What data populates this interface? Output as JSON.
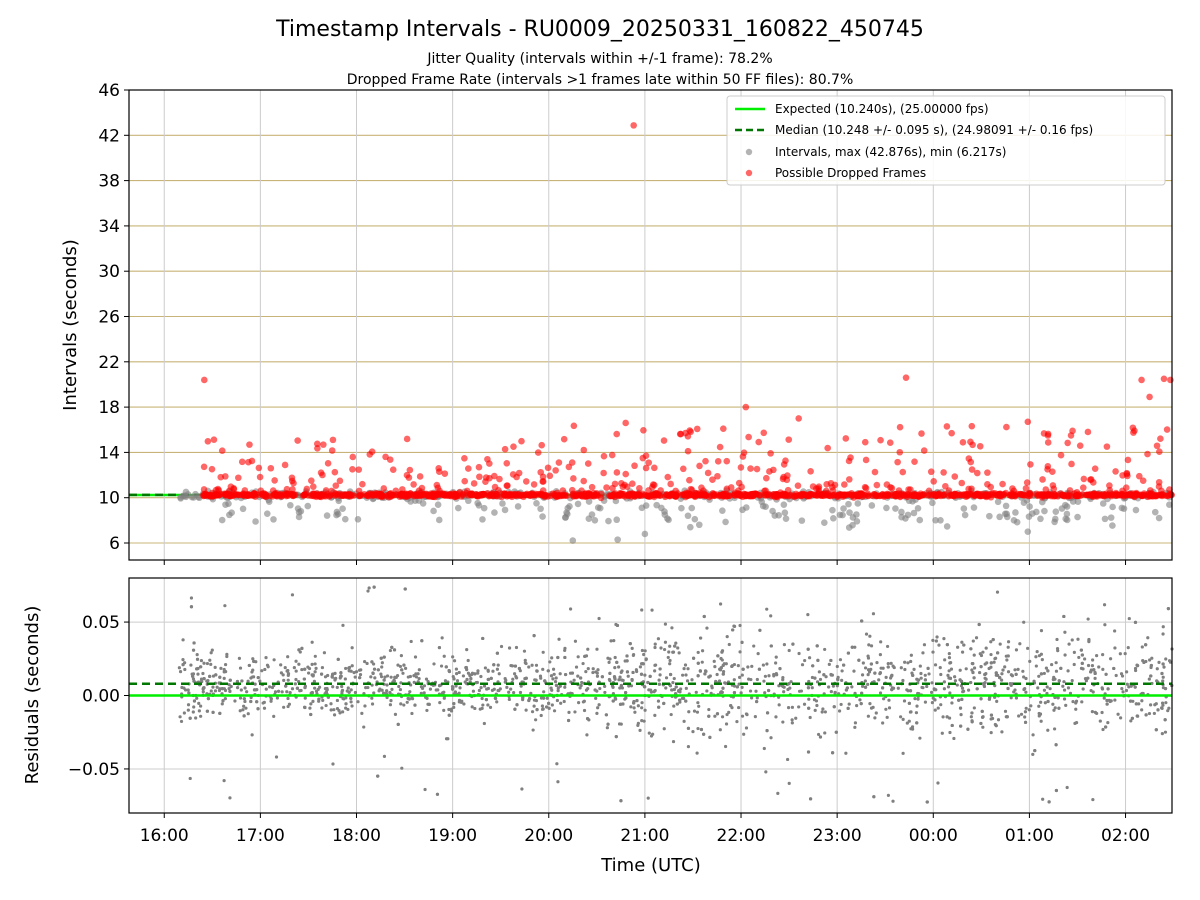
{
  "figure": {
    "title": "Timestamp Intervals - RU0009_20250331_160822_450745",
    "subtitle_1": "Jitter Quality (intervals within +/-1 frame): 78.2%",
    "subtitle_2": "Dropped Frame Rate (intervals >1 frames late within 50 FF files): 80.7%"
  },
  "chart_data": [
    {
      "type": "scatter",
      "ylabel": "Intervals (seconds)",
      "xlim": [
        "15:38",
        "02:29"
      ],
      "ylim": [
        4.5,
        46
      ],
      "y_ticks": [
        6,
        10,
        14,
        18,
        22,
        26,
        30,
        34,
        38,
        42,
        46
      ],
      "x_ticks": [
        "16:00",
        "17:00",
        "18:00",
        "19:00",
        "20:00",
        "21:00",
        "22:00",
        "23:00",
        "00:00",
        "01:00",
        "02:00"
      ],
      "grid": true,
      "legend_position": "top-right",
      "expected_line": {
        "y": 10.24,
        "color": "#00ee00"
      },
      "median_line": {
        "y": 10.248,
        "color": "#007700",
        "x_end": "20:12"
      },
      "legend": [
        "Expected (10.240s), (25.00000 fps)",
        "Median (10.248 +/- 0.095 s), (24.98091 +/- 0.16 fps)",
        "Intervals, max (42.876s), min (6.217s)",
        "Possible Dropped Frames"
      ],
      "series_colors": {
        "intervals": "#808080",
        "dropped": "#ff0000"
      },
      "notable_points": [
        {
          "x": "20:53",
          "y": 42.876,
          "series": "dropped"
        },
        {
          "x": "16:25",
          "y": 20.4,
          "series": "dropped"
        },
        {
          "x": "23:43",
          "y": 20.6,
          "series": "dropped"
        },
        {
          "x": "22:03",
          "y": 18.0,
          "series": "dropped"
        },
        {
          "x": "02:10",
          "y": 20.4,
          "series": "dropped"
        },
        {
          "x": "02:24",
          "y": 20.5,
          "series": "dropped"
        },
        {
          "x": "02:28",
          "y": 20.4,
          "series": "dropped"
        },
        {
          "x": "02:15",
          "y": 18.9,
          "series": "dropped"
        },
        {
          "x": "20:48",
          "y": 16.6,
          "series": "dropped"
        },
        {
          "x": "22:36",
          "y": 17.0,
          "series": "dropped"
        },
        {
          "x": "00:59",
          "y": 16.7,
          "series": "dropped"
        },
        {
          "x": "20:15",
          "y": 6.217,
          "series": "intervals"
        },
        {
          "x": "20:43",
          "y": 6.3,
          "series": "intervals"
        },
        {
          "x": "21:00",
          "y": 6.8,
          "series": "intervals"
        },
        {
          "x": "00:59",
          "y": 7.0,
          "series": "intervals"
        },
        {
          "x": "16:57",
          "y": 7.9,
          "series": "intervals"
        },
        {
          "x": "17:53",
          "y": 8.1,
          "series": "intervals"
        }
      ]
    },
    {
      "type": "scatter",
      "xlabel": "Time (UTC)",
      "ylabel": "Residuals (seconds)",
      "xlim": [
        "15:38",
        "02:29"
      ],
      "ylim": [
        -0.08,
        0.08
      ],
      "y_ticks": [
        -0.05,
        0.0,
        0.05
      ],
      "y_tick_labels": [
        "−0.05",
        "0.00",
        "0.05"
      ],
      "x_ticks": [
        "16:00",
        "17:00",
        "18:00",
        "19:00",
        "20:00",
        "21:00",
        "22:00",
        "23:00",
        "00:00",
        "01:00",
        "02:00"
      ],
      "grid": true,
      "zero_line": {
        "y": 0.0,
        "color": "#00ee00"
      },
      "median_line": {
        "y": 0.008,
        "color": "#007700"
      },
      "point_color": "#808080",
      "x_range": [
        "16:09",
        "02:29"
      ],
      "y_spread_core": [
        -0.02,
        0.03
      ],
      "y_spread_outliers": [
        -0.077,
        0.078
      ]
    }
  ]
}
